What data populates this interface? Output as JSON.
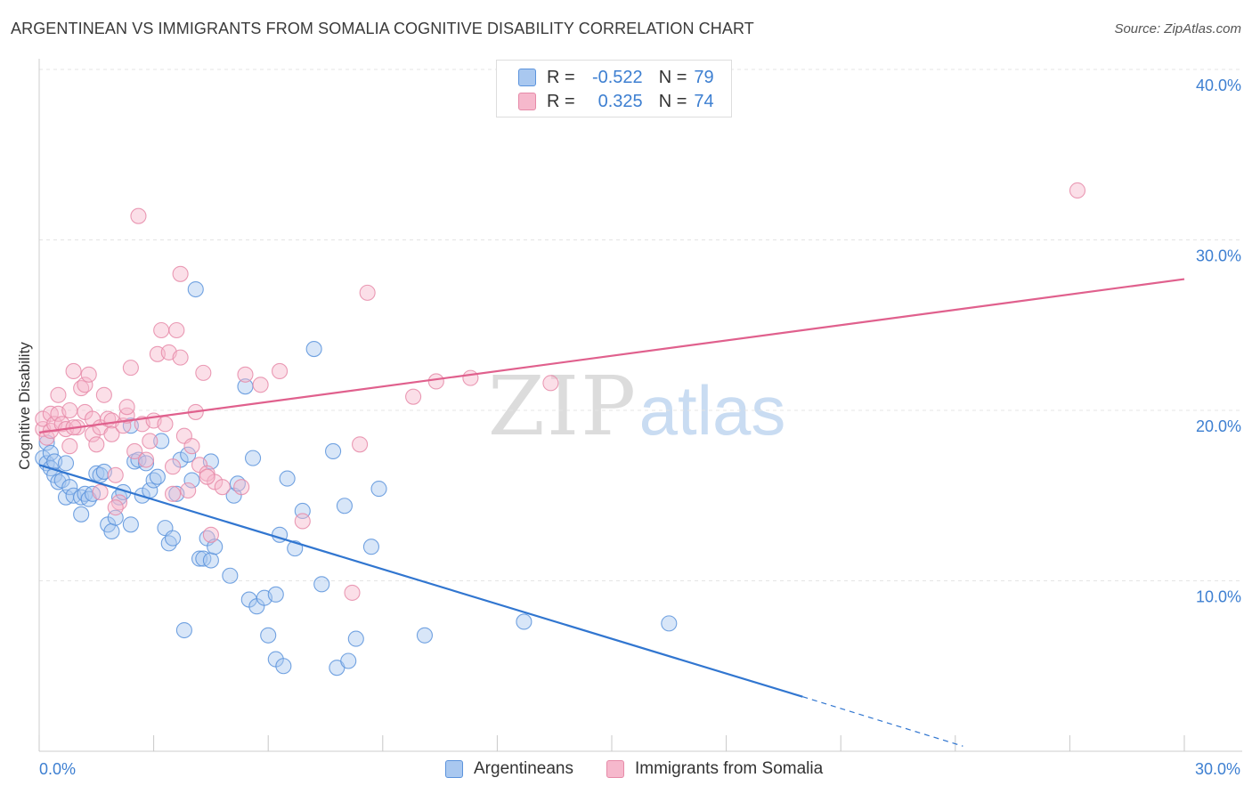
{
  "header": {
    "title": "ARGENTINEAN VS IMMIGRANTS FROM SOMALIA COGNITIVE DISABILITY CORRELATION CHART",
    "source": "Source: ZipAtlas.com"
  },
  "legend": {
    "r_label": "R =",
    "n_label": "N =",
    "rows": [
      {
        "r": "-0.522",
        "n": "79"
      },
      {
        "r": "0.325",
        "n": "74"
      }
    ]
  },
  "watermark": {
    "zip": "ZIP",
    "atlas": "atlas"
  },
  "colors": {
    "blue_fill": "#a9c8f0",
    "blue_stroke": "#5b93dc",
    "blue_line": "#3176d0",
    "pink_fill": "#f6b8cc",
    "pink_stroke": "#e68aa8",
    "pink_line": "#e0608d",
    "axis_text": "#3d7fd1"
  },
  "chart_data": {
    "type": "scatter",
    "title": "ARGENTINEAN VS IMMIGRANTS FROM SOMALIA COGNITIVE DISABILITY CORRELATION CHART",
    "ylabel": "Cognitive Disability",
    "xlabel": "",
    "xlim": [
      0,
      30
    ],
    "ylim": [
      0,
      40
    ],
    "x_tick_labels": [
      "0.0%",
      "30.0%"
    ],
    "y_ticks": [
      10,
      20,
      30,
      40
    ],
    "y_tick_labels": [
      "10.0%",
      "20.0%",
      "30.0%",
      "40.0%"
    ],
    "grid": true,
    "legend_position": "top-center",
    "series": [
      {
        "name": "Argentineans",
        "r": -0.522,
        "n": 79,
        "trend": {
          "x0": 0,
          "y0": 16.8,
          "x1": 20,
          "y1": 3.2,
          "dashed_to_x": 24.2,
          "dashed_to_y": 0.3
        },
        "points": [
          [
            0.1,
            17.2
          ],
          [
            0.2,
            18.1
          ],
          [
            0.2,
            16.9
          ],
          [
            0.3,
            17.5
          ],
          [
            0.3,
            16.6
          ],
          [
            0.4,
            16.2
          ],
          [
            0.4,
            17.0
          ],
          [
            0.5,
            15.8
          ],
          [
            0.6,
            15.9
          ],
          [
            0.7,
            14.9
          ],
          [
            0.7,
            16.9
          ],
          [
            0.8,
            15.5
          ],
          [
            0.9,
            15.0
          ],
          [
            1.1,
            14.9
          ],
          [
            1.1,
            13.9
          ],
          [
            1.2,
            15.1
          ],
          [
            1.3,
            14.8
          ],
          [
            1.4,
            15.1
          ],
          [
            1.5,
            16.3
          ],
          [
            1.6,
            16.2
          ],
          [
            1.7,
            16.4
          ],
          [
            1.8,
            13.3
          ],
          [
            1.9,
            12.9
          ],
          [
            2.0,
            13.7
          ],
          [
            2.1,
            14.9
          ],
          [
            2.2,
            15.2
          ],
          [
            2.4,
            19.1
          ],
          [
            2.4,
            13.3
          ],
          [
            2.5,
            17.0
          ],
          [
            2.6,
            17.1
          ],
          [
            2.7,
            15.0
          ],
          [
            2.8,
            16.9
          ],
          [
            2.9,
            15.3
          ],
          [
            3.0,
            15.9
          ],
          [
            3.1,
            16.1
          ],
          [
            3.2,
            18.2
          ],
          [
            3.3,
            13.1
          ],
          [
            3.4,
            12.2
          ],
          [
            3.5,
            12.5
          ],
          [
            3.6,
            15.1
          ],
          [
            3.7,
            17.1
          ],
          [
            3.8,
            7.1
          ],
          [
            3.9,
            17.4
          ],
          [
            4.0,
            15.9
          ],
          [
            4.1,
            27.1
          ],
          [
            4.2,
            11.3
          ],
          [
            4.3,
            11.3
          ],
          [
            4.4,
            12.5
          ],
          [
            4.5,
            17.0
          ],
          [
            4.5,
            11.2
          ],
          [
            4.6,
            12.0
          ],
          [
            5.0,
            10.3
          ],
          [
            5.1,
            15.0
          ],
          [
            5.2,
            15.7
          ],
          [
            5.4,
            21.4
          ],
          [
            5.5,
            8.9
          ],
          [
            5.6,
            17.2
          ],
          [
            5.7,
            8.5
          ],
          [
            5.9,
            9.0
          ],
          [
            6.0,
            6.8
          ],
          [
            6.2,
            9.2
          ],
          [
            6.2,
            5.4
          ],
          [
            6.3,
            12.7
          ],
          [
            6.4,
            5.0
          ],
          [
            6.5,
            16.0
          ],
          [
            6.7,
            11.9
          ],
          [
            6.9,
            14.1
          ],
          [
            7.2,
            23.6
          ],
          [
            7.4,
            9.8
          ],
          [
            7.7,
            17.6
          ],
          [
            7.8,
            4.9
          ],
          [
            8.0,
            14.4
          ],
          [
            8.1,
            5.3
          ],
          [
            8.3,
            6.6
          ],
          [
            8.7,
            12.0
          ],
          [
            8.9,
            15.4
          ],
          [
            10.1,
            6.8
          ],
          [
            12.7,
            7.6
          ],
          [
            16.5,
            7.5
          ]
        ]
      },
      {
        "name": "Immigrants from Somalia",
        "r": 0.325,
        "n": 74,
        "trend": {
          "x0": 0,
          "y0": 18.7,
          "x1": 30,
          "y1": 27.7
        },
        "points": [
          [
            0.1,
            18.9
          ],
          [
            0.1,
            19.5
          ],
          [
            0.2,
            18.4
          ],
          [
            0.3,
            19.8
          ],
          [
            0.3,
            18.8
          ],
          [
            0.4,
            19.2
          ],
          [
            0.5,
            19.8
          ],
          [
            0.5,
            20.9
          ],
          [
            0.6,
            19.2
          ],
          [
            0.7,
            18.9
          ],
          [
            0.8,
            17.9
          ],
          [
            0.8,
            20.0
          ],
          [
            0.9,
            22.3
          ],
          [
            1.0,
            19.0
          ],
          [
            1.1,
            21.3
          ],
          [
            1.2,
            19.9
          ],
          [
            1.2,
            21.5
          ],
          [
            1.3,
            22.1
          ],
          [
            1.4,
            19.5
          ],
          [
            1.4,
            18.6
          ],
          [
            1.5,
            18.0
          ],
          [
            1.6,
            19.0
          ],
          [
            1.7,
            20.9
          ],
          [
            1.8,
            19.5
          ],
          [
            1.9,
            19.4
          ],
          [
            1.9,
            18.6
          ],
          [
            2.0,
            16.2
          ],
          [
            2.1,
            14.6
          ],
          [
            2.2,
            19.1
          ],
          [
            2.3,
            19.7
          ],
          [
            2.3,
            20.2
          ],
          [
            2.4,
            22.5
          ],
          [
            2.5,
            17.6
          ],
          [
            2.6,
            31.4
          ],
          [
            2.7,
            19.2
          ],
          [
            2.8,
            17.1
          ],
          [
            2.9,
            18.2
          ],
          [
            3.0,
            19.4
          ],
          [
            3.1,
            23.3
          ],
          [
            3.2,
            24.7
          ],
          [
            3.3,
            19.2
          ],
          [
            3.4,
            23.4
          ],
          [
            3.5,
            15.1
          ],
          [
            3.5,
            16.7
          ],
          [
            3.6,
            24.7
          ],
          [
            3.7,
            23.1
          ],
          [
            3.7,
            28.0
          ],
          [
            3.8,
            18.5
          ],
          [
            3.9,
            15.3
          ],
          [
            4.0,
            17.9
          ],
          [
            4.1,
            19.9
          ],
          [
            4.2,
            16.8
          ],
          [
            4.3,
            22.2
          ],
          [
            4.4,
            16.3
          ],
          [
            4.5,
            12.7
          ],
          [
            4.6,
            15.8
          ],
          [
            4.8,
            15.5
          ],
          [
            5.3,
            15.5
          ],
          [
            5.4,
            22.1
          ],
          [
            5.8,
            21.5
          ],
          [
            6.3,
            22.3
          ],
          [
            6.9,
            13.5
          ],
          [
            8.2,
            9.3
          ],
          [
            8.4,
            18.0
          ],
          [
            8.6,
            26.9
          ],
          [
            9.8,
            20.8
          ],
          [
            10.4,
            21.7
          ],
          [
            11.3,
            21.9
          ],
          [
            13.4,
            21.6
          ],
          [
            27.2,
            32.9
          ],
          [
            0.9,
            19.0
          ],
          [
            1.6,
            15.2
          ],
          [
            2.0,
            14.3
          ],
          [
            4.4,
            16.1
          ]
        ]
      }
    ]
  }
}
